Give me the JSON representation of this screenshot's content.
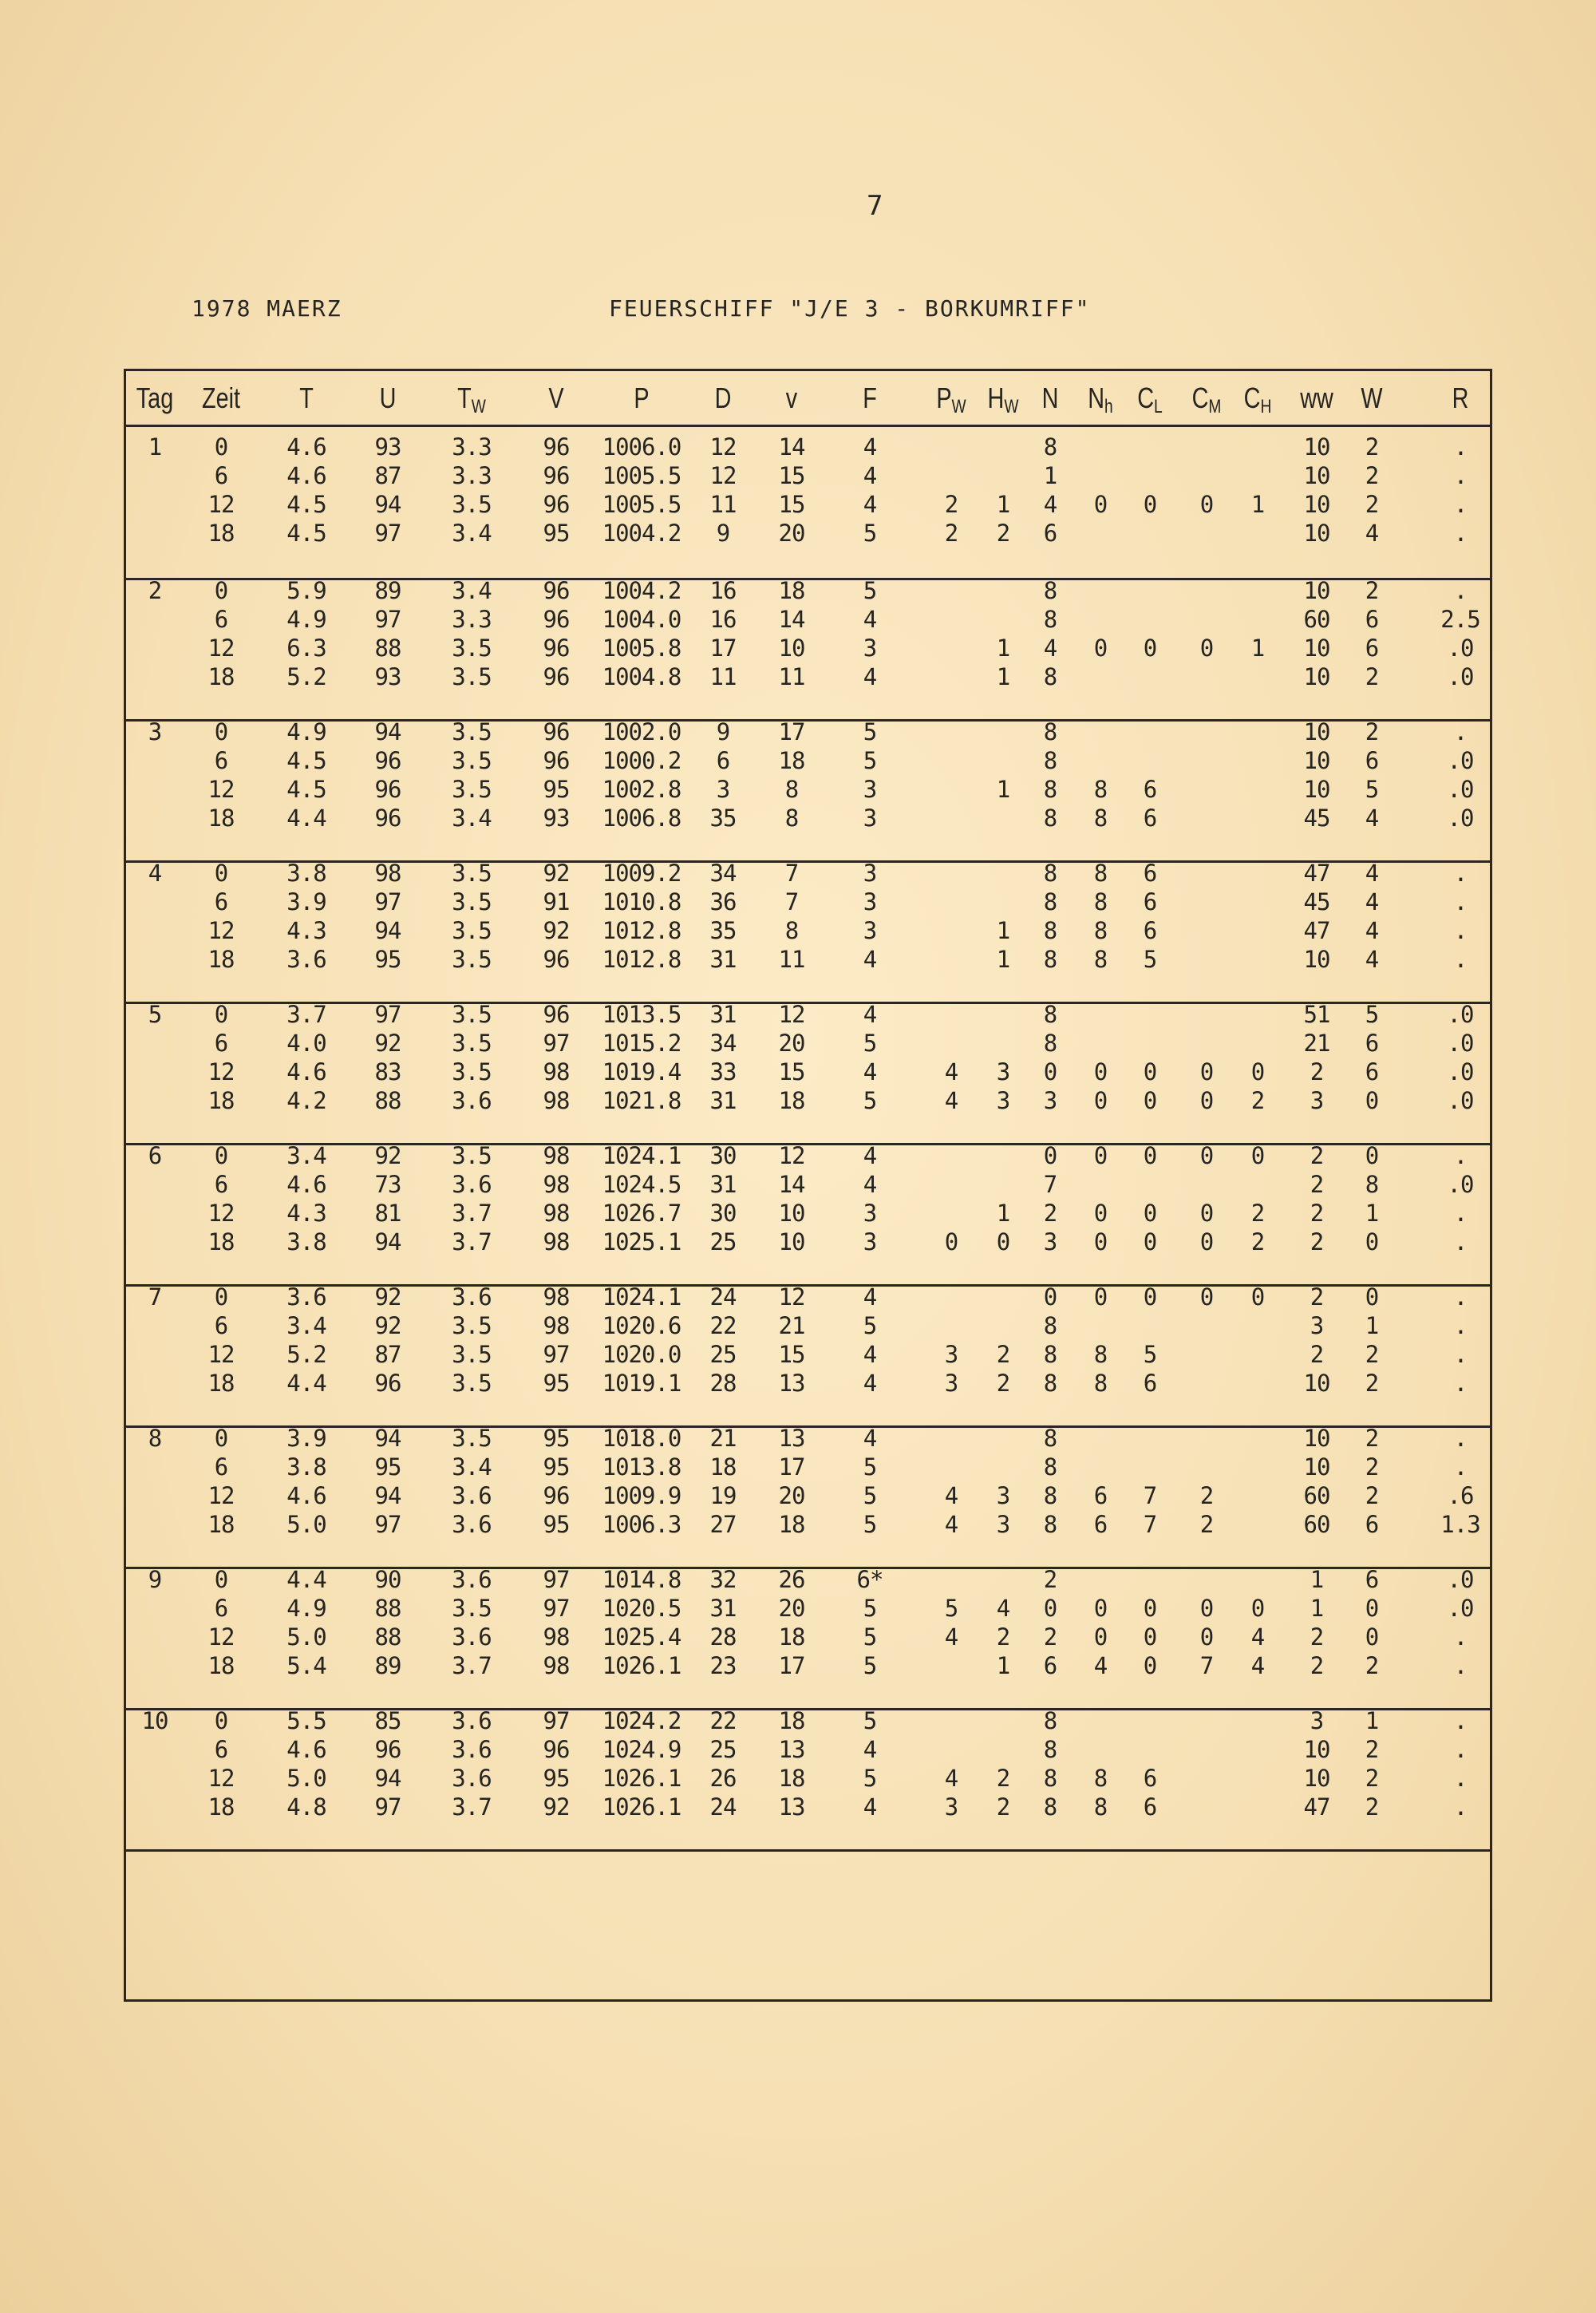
{
  "page_number": "7",
  "header": {
    "left": "1978 MAERZ",
    "right": "FEUERSCHIFF \"J/E 3 - BORKUMRIFF\""
  },
  "table": {
    "columns": [
      {
        "main": "Tag",
        "sub": ""
      },
      {
        "main": "Zeit",
        "sub": ""
      },
      {
        "main": "T",
        "sub": ""
      },
      {
        "main": "U",
        "sub": ""
      },
      {
        "main": "T",
        "sub": "W"
      },
      {
        "main": "V",
        "sub": ""
      },
      {
        "main": "P",
        "sub": ""
      },
      {
        "main": "D",
        "sub": ""
      },
      {
        "main": "v",
        "sub": ""
      },
      {
        "main": "F",
        "sub": ""
      },
      {
        "main": "P",
        "sub": "W"
      },
      {
        "main": "H",
        "sub": "W"
      },
      {
        "main": "N",
        "sub": ""
      },
      {
        "main": "N",
        "sub": "h"
      },
      {
        "main": "C",
        "sub": "L"
      },
      {
        "main": "C",
        "sub": "M"
      },
      {
        "main": "C",
        "sub": "H"
      },
      {
        "main": "ww",
        "sub": ""
      },
      {
        "main": "W",
        "sub": ""
      },
      {
        "main": "R",
        "sub": ""
      }
    ],
    "days": [
      {
        "rows": [
          [
            "1",
            "0",
            "4.6",
            "93",
            "3.3",
            "96",
            "1006.0",
            "12",
            "14",
            "4",
            "",
            "",
            "8",
            "",
            "",
            "",
            "",
            "10",
            "2",
            "."
          ],
          [
            "",
            "6",
            "4.6",
            "87",
            "3.3",
            "96",
            "1005.5",
            "12",
            "15",
            "4",
            "",
            "",
            "1",
            "",
            "",
            "",
            "",
            "10",
            "2",
            "."
          ],
          [
            "",
            "12",
            "4.5",
            "94",
            "3.5",
            "96",
            "1005.5",
            "11",
            "15",
            "4",
            "2",
            "1",
            "4",
            "0",
            "0",
            "0",
            "1",
            "10",
            "2",
            "."
          ],
          [
            "",
            "18",
            "4.5",
            "97",
            "3.4",
            "95",
            "1004.2",
            "9",
            "20",
            "5",
            "2",
            "2",
            "6",
            "",
            "",
            "",
            "",
            "10",
            "4",
            "."
          ]
        ]
      },
      {
        "rows": [
          [
            "2",
            "0",
            "5.9",
            "89",
            "3.4",
            "96",
            "1004.2",
            "16",
            "18",
            "5",
            "",
            "",
            "8",
            "",
            "",
            "",
            "",
            "10",
            "2",
            "."
          ],
          [
            "",
            "6",
            "4.9",
            "97",
            "3.3",
            "96",
            "1004.0",
            "16",
            "14",
            "4",
            "",
            "",
            "8",
            "",
            "",
            "",
            "",
            "60",
            "6",
            "2.5"
          ],
          [
            "",
            "12",
            "6.3",
            "88",
            "3.5",
            "96",
            "1005.8",
            "17",
            "10",
            "3",
            "",
            "1",
            "4",
            "0",
            "0",
            "0",
            "1",
            "10",
            "6",
            ".0"
          ],
          [
            "",
            "18",
            "5.2",
            "93",
            "3.5",
            "96",
            "1004.8",
            "11",
            "11",
            "4",
            "",
            "1",
            "8",
            "",
            "",
            "",
            "",
            "10",
            "2",
            ".0"
          ]
        ]
      },
      {
        "rows": [
          [
            "3",
            "0",
            "4.9",
            "94",
            "3.5",
            "96",
            "1002.0",
            "9",
            "17",
            "5",
            "",
            "",
            "8",
            "",
            "",
            "",
            "",
            "10",
            "2",
            "."
          ],
          [
            "",
            "6",
            "4.5",
            "96",
            "3.5",
            "96",
            "1000.2",
            "6",
            "18",
            "5",
            "",
            "",
            "8",
            "",
            "",
            "",
            "",
            "10",
            "6",
            ".0"
          ],
          [
            "",
            "12",
            "4.5",
            "96",
            "3.5",
            "95",
            "1002.8",
            "3",
            "8",
            "3",
            "",
            "1",
            "8",
            "8",
            "6",
            "",
            "",
            "10",
            "5",
            ".0"
          ],
          [
            "",
            "18",
            "4.4",
            "96",
            "3.4",
            "93",
            "1006.8",
            "35",
            "8",
            "3",
            "",
            "",
            "8",
            "8",
            "6",
            "",
            "",
            "45",
            "4",
            ".0"
          ]
        ]
      },
      {
        "rows": [
          [
            "4",
            "0",
            "3.8",
            "98",
            "3.5",
            "92",
            "1009.2",
            "34",
            "7",
            "3",
            "",
            "",
            "8",
            "8",
            "6",
            "",
            "",
            "47",
            "4",
            "."
          ],
          [
            "",
            "6",
            "3.9",
            "97",
            "3.5",
            "91",
            "1010.8",
            "36",
            "7",
            "3",
            "",
            "",
            "8",
            "8",
            "6",
            "",
            "",
            "45",
            "4",
            "."
          ],
          [
            "",
            "12",
            "4.3",
            "94",
            "3.5",
            "92",
            "1012.8",
            "35",
            "8",
            "3",
            "",
            "1",
            "8",
            "8",
            "6",
            "",
            "",
            "47",
            "4",
            "."
          ],
          [
            "",
            "18",
            "3.6",
            "95",
            "3.5",
            "96",
            "1012.8",
            "31",
            "11",
            "4",
            "",
            "1",
            "8",
            "8",
            "5",
            "",
            "",
            "10",
            "4",
            "."
          ]
        ]
      },
      {
        "rows": [
          [
            "5",
            "0",
            "3.7",
            "97",
            "3.5",
            "96",
            "1013.5",
            "31",
            "12",
            "4",
            "",
            "",
            "8",
            "",
            "",
            "",
            "",
            "51",
            "5",
            ".0"
          ],
          [
            "",
            "6",
            "4.0",
            "92",
            "3.5",
            "97",
            "1015.2",
            "34",
            "20",
            "5",
            "",
            "",
            "8",
            "",
            "",
            "",
            "",
            "21",
            "6",
            ".0"
          ],
          [
            "",
            "12",
            "4.6",
            "83",
            "3.5",
            "98",
            "1019.4",
            "33",
            "15",
            "4",
            "4",
            "3",
            "0",
            "0",
            "0",
            "0",
            "0",
            "2",
            "6",
            ".0"
          ],
          [
            "",
            "18",
            "4.2",
            "88",
            "3.6",
            "98",
            "1021.8",
            "31",
            "18",
            "5",
            "4",
            "3",
            "3",
            "0",
            "0",
            "0",
            "2",
            "3",
            "0",
            ".0"
          ]
        ]
      },
      {
        "rows": [
          [
            "6",
            "0",
            "3.4",
            "92",
            "3.5",
            "98",
            "1024.1",
            "30",
            "12",
            "4",
            "",
            "",
            "0",
            "0",
            "0",
            "0",
            "0",
            "2",
            "0",
            "."
          ],
          [
            "",
            "6",
            "4.6",
            "73",
            "3.6",
            "98",
            "1024.5",
            "31",
            "14",
            "4",
            "",
            "",
            "7",
            "",
            "",
            "",
            "",
            "2",
            "8",
            ".0"
          ],
          [
            "",
            "12",
            "4.3",
            "81",
            "3.7",
            "98",
            "1026.7",
            "30",
            "10",
            "3",
            "",
            "1",
            "2",
            "0",
            "0",
            "0",
            "2",
            "2",
            "1",
            "."
          ],
          [
            "",
            "18",
            "3.8",
            "94",
            "3.7",
            "98",
            "1025.1",
            "25",
            "10",
            "3",
            "0",
            "0",
            "3",
            "0",
            "0",
            "0",
            "2",
            "2",
            "0",
            "."
          ]
        ]
      },
      {
        "rows": [
          [
            "7",
            "0",
            "3.6",
            "92",
            "3.6",
            "98",
            "1024.1",
            "24",
            "12",
            "4",
            "",
            "",
            "0",
            "0",
            "0",
            "0",
            "0",
            "2",
            "0",
            "."
          ],
          [
            "",
            "6",
            "3.4",
            "92",
            "3.5",
            "98",
            "1020.6",
            "22",
            "21",
            "5",
            "",
            "",
            "8",
            "",
            "",
            "",
            "",
            "3",
            "1",
            "."
          ],
          [
            "",
            "12",
            "5.2",
            "87",
            "3.5",
            "97",
            "1020.0",
            "25",
            "15",
            "4",
            "3",
            "2",
            "8",
            "8",
            "5",
            "",
            "",
            "2",
            "2",
            "."
          ],
          [
            "",
            "18",
            "4.4",
            "96",
            "3.5",
            "95",
            "1019.1",
            "28",
            "13",
            "4",
            "3",
            "2",
            "8",
            "8",
            "6",
            "",
            "",
            "10",
            "2",
            "."
          ]
        ]
      },
      {
        "rows": [
          [
            "8",
            "0",
            "3.9",
            "94",
            "3.5",
            "95",
            "1018.0",
            "21",
            "13",
            "4",
            "",
            "",
            "8",
            "",
            "",
            "",
            "",
            "10",
            "2",
            "."
          ],
          [
            "",
            "6",
            "3.8",
            "95",
            "3.4",
            "95",
            "1013.8",
            "18",
            "17",
            "5",
            "",
            "",
            "8",
            "",
            "",
            "",
            "",
            "10",
            "2",
            "."
          ],
          [
            "",
            "12",
            "4.6",
            "94",
            "3.6",
            "96",
            "1009.9",
            "19",
            "20",
            "5",
            "4",
            "3",
            "8",
            "6",
            "7",
            "2",
            "",
            "60",
            "2",
            ".6"
          ],
          [
            "",
            "18",
            "5.0",
            "97",
            "3.6",
            "95",
            "1006.3",
            "27",
            "18",
            "5",
            "4",
            "3",
            "8",
            "6",
            "7",
            "2",
            "",
            "60",
            "6",
            "1.3"
          ]
        ]
      },
      {
        "rows": [
          [
            "9",
            "0",
            "4.4",
            "90",
            "3.6",
            "97",
            "1014.8",
            "32",
            "26",
            "6*",
            "",
            "",
            "2",
            "",
            "",
            "",
            "",
            "1",
            "6",
            ".0"
          ],
          [
            "",
            "6",
            "4.9",
            "88",
            "3.5",
            "97",
            "1020.5",
            "31",
            "20",
            "5",
            "5",
            "4",
            "0",
            "0",
            "0",
            "0",
            "0",
            "1",
            "0",
            ".0"
          ],
          [
            "",
            "12",
            "5.0",
            "88",
            "3.6",
            "98",
            "1025.4",
            "28",
            "18",
            "5",
            "4",
            "2",
            "2",
            "0",
            "0",
            "0",
            "4",
            "2",
            "0",
            "."
          ],
          [
            "",
            "18",
            "5.4",
            "89",
            "3.7",
            "98",
            "1026.1",
            "23",
            "17",
            "5",
            "",
            "1",
            "6",
            "4",
            "0",
            "7",
            "4",
            "2",
            "2",
            "."
          ]
        ]
      },
      {
        "rows": [
          [
            "10",
            "0",
            "5.5",
            "85",
            "3.6",
            "97",
            "1024.2",
            "22",
            "18",
            "5",
            "",
            "",
            "8",
            "",
            "",
            "",
            "",
            "3",
            "1",
            "."
          ],
          [
            "",
            "6",
            "4.6",
            "96",
            "3.6",
            "96",
            "1024.9",
            "25",
            "13",
            "4",
            "",
            "",
            "8",
            "",
            "",
            "",
            "",
            "10",
            "2",
            "."
          ],
          [
            "",
            "12",
            "5.0",
            "94",
            "3.6",
            "95",
            "1026.1",
            "26",
            "18",
            "5",
            "4",
            "2",
            "8",
            "8",
            "6",
            "",
            "",
            "10",
            "2",
            "."
          ],
          [
            "",
            "18",
            "4.8",
            "97",
            "3.7",
            "92",
            "1026.1",
            "24",
            "13",
            "4",
            "3",
            "2",
            "8",
            "8",
            "6",
            "",
            "",
            "47",
            "2",
            "."
          ]
        ]
      }
    ]
  }
}
